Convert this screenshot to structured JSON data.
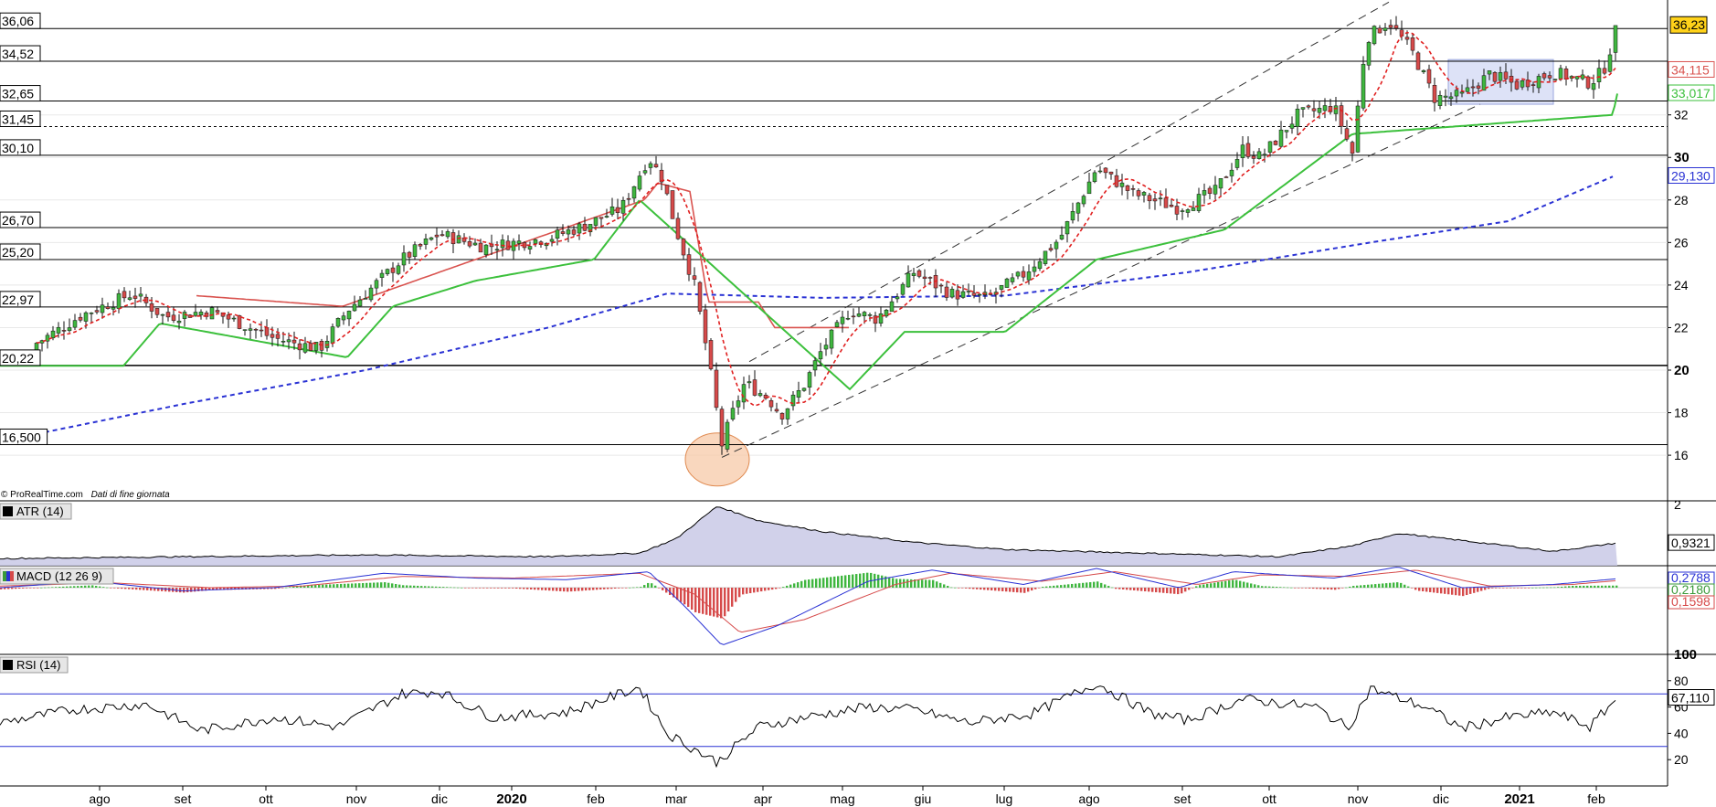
{
  "watermark": {
    "source": "© ProRealTime.com",
    "note": "Dati di fine giornata"
  },
  "colors": {
    "up": "#3fb63f",
    "down": "#d64a4a",
    "ma_short": "#e02020",
    "ma_long": "#2a32d4",
    "stop_upper": "#d9534f",
    "stop_lower": "#3cc03c",
    "price_badge": "#ffd21a",
    "atr_fill": "#c9c9e6",
    "rsi_band": "#2a32d4"
  },
  "chart_data": [
    {
      "type": "candlestick",
      "panel": "price",
      "x_labels": [
        "ago",
        "set",
        "ott",
        "nov",
        "dic",
        "2020",
        "feb",
        "mar",
        "apr",
        "mag",
        "giu",
        "lug",
        "ago",
        "set",
        "ott",
        "nov",
        "dic",
        "2021",
        "feb"
      ],
      "bold_x_labels": [
        "2020",
        "2021"
      ],
      "y_ticks": [
        16,
        18,
        20,
        22,
        24,
        26,
        28,
        30,
        32
      ],
      "bold_y_ticks": [
        20,
        30
      ],
      "ylim": [
        14.2,
        37.4
      ],
      "price_last": "36,23",
      "overlay_values": [
        {
          "value": "34,115",
          "color": "#d9534f"
        },
        {
          "value": "33,017",
          "color": "#3cc03c"
        },
        {
          "value": "29,130",
          "color": "#2a32d4"
        }
      ],
      "horizontal_levels": [
        {
          "value": 36.06,
          "label": "36,06"
        },
        {
          "value": 34.52,
          "label": "34,52"
        },
        {
          "value": 32.65,
          "label": "32,65"
        },
        {
          "value": 31.45,
          "label": "31,45"
        },
        {
          "value": 30.1,
          "label": "30,10"
        },
        {
          "value": 26.7,
          "label": "26,70"
        },
        {
          "value": 25.2,
          "label": "25,20"
        },
        {
          "value": 22.97,
          "label": "22,97"
        },
        {
          "value": 20.22,
          "label": "20,22"
        },
        {
          "value": 16.5,
          "label": "16,500"
        }
      ],
      "dotted_level": 31.45,
      "anchors": [
        {
          "t": 0,
          "v": 20.3
        },
        {
          "t": 45,
          "v": 21.4
        },
        {
          "t": 90,
          "v": 22.6
        },
        {
          "t": 145,
          "v": 23.6
        },
        {
          "t": 180,
          "v": 22.5
        },
        {
          "t": 230,
          "v": 22.8
        },
        {
          "t": 300,
          "v": 21.5
        },
        {
          "t": 350,
          "v": 21.0
        },
        {
          "t": 380,
          "v": 22.8
        },
        {
          "t": 440,
          "v": 25.2
        },
        {
          "t": 480,
          "v": 26.4
        },
        {
          "t": 530,
          "v": 25.8
        },
        {
          "t": 600,
          "v": 26.2
        },
        {
          "t": 640,
          "v": 26.8
        },
        {
          "t": 680,
          "v": 27.6
        },
        {
          "t": 710,
          "v": 30.0
        },
        {
          "t": 725,
          "v": 29.0
        },
        {
          "t": 740,
          "v": 26.6
        },
        {
          "t": 760,
          "v": 24.0
        },
        {
          "t": 775,
          "v": 20.6
        },
        {
          "t": 790,
          "v": 16.5
        },
        {
          "t": 800,
          "v": 17.8
        },
        {
          "t": 815,
          "v": 19.4
        },
        {
          "t": 840,
          "v": 18.7
        },
        {
          "t": 855,
          "v": 17.9
        },
        {
          "t": 880,
          "v": 19.3
        },
        {
          "t": 900,
          "v": 21.0
        },
        {
          "t": 930,
          "v": 22.8
        },
        {
          "t": 960,
          "v": 22.4
        },
        {
          "t": 1000,
          "v": 24.6
        },
        {
          "t": 1040,
          "v": 23.6
        },
        {
          "t": 1080,
          "v": 23.4
        },
        {
          "t": 1120,
          "v": 24.5
        },
        {
          "t": 1160,
          "v": 26.2
        },
        {
          "t": 1200,
          "v": 29.5
        },
        {
          "t": 1240,
          "v": 28.3
        },
        {
          "t": 1290,
          "v": 27.6
        },
        {
          "t": 1330,
          "v": 28.4
        },
        {
          "t": 1360,
          "v": 30.4
        },
        {
          "t": 1380,
          "v": 30.0
        },
        {
          "t": 1420,
          "v": 32.0
        },
        {
          "t": 1460,
          "v": 32.4
        },
        {
          "t": 1480,
          "v": 30.2
        },
        {
          "t": 1495,
          "v": 35.6
        },
        {
          "t": 1520,
          "v": 36.4
        },
        {
          "t": 1545,
          "v": 35.0
        },
        {
          "t": 1570,
          "v": 32.8
        },
        {
          "t": 1600,
          "v": 32.9
        },
        {
          "t": 1630,
          "v": 33.9
        },
        {
          "t": 1660,
          "v": 33.4
        },
        {
          "t": 1700,
          "v": 34.0
        },
        {
          "t": 1740,
          "v": 33.5
        },
        {
          "t": 1755,
          "v": 34.1
        },
        {
          "t": 1770,
          "v": 36.2
        }
      ],
      "ma_long": [
        {
          "t": 40,
          "v": 17.0
        },
        {
          "t": 200,
          "v": 18.4
        },
        {
          "t": 400,
          "v": 20.0
        },
        {
          "t": 600,
          "v": 22.0
        },
        {
          "t": 730,
          "v": 23.6
        },
        {
          "t": 900,
          "v": 23.4
        },
        {
          "t": 1100,
          "v": 23.5
        },
        {
          "t": 1300,
          "v": 24.6
        },
        {
          "t": 1500,
          "v": 26.0
        },
        {
          "t": 1650,
          "v": 27.0
        },
        {
          "t": 1765,
          "v": 29.1
        }
      ],
      "stop_upper": [
        {
          "t": 215,
          "v": 23.5
        },
        {
          "t": 375,
          "v": 23.0
        },
        {
          "t": 705,
          "v": 28.0
        },
        {
          "t": 720,
          "v": 28.8
        },
        {
          "t": 755,
          "v": 28.4
        },
        {
          "t": 775,
          "v": 23.2
        },
        {
          "t": 830,
          "v": 23.2
        },
        {
          "t": 848,
          "v": 22.0
        },
        {
          "t": 930,
          "v": 22.0
        }
      ],
      "stop_lower": [
        {
          "t": 0,
          "v": 20.2
        },
        {
          "t": 135,
          "v": 20.2
        },
        {
          "t": 175,
          "v": 22.2
        },
        {
          "t": 380,
          "v": 20.6
        },
        {
          "t": 430,
          "v": 23.0
        },
        {
          "t": 520,
          "v": 24.2
        },
        {
          "t": 650,
          "v": 25.2
        },
        {
          "t": 700,
          "v": 28.0
        },
        {
          "t": 930,
          "v": 19.1
        },
        {
          "t": 990,
          "v": 21.8
        },
        {
          "t": 1100,
          "v": 21.8
        },
        {
          "t": 1200,
          "v": 25.2
        },
        {
          "t": 1340,
          "v": 26.6
        },
        {
          "t": 1480,
          "v": 31.1
        },
        {
          "t": 1765,
          "v": 32.0
        },
        {
          "t": 1770,
          "v": 33.0
        }
      ],
      "channel_lines": [
        [
          {
            "t": 790,
            "v": 15.9
          },
          {
            "t": 1620,
            "v": 32.5
          }
        ],
        [
          {
            "t": 820,
            "v": 20.4
          },
          {
            "t": 1520,
            "v": 37.3
          }
        ]
      ],
      "range_box": {
        "t0": 1585,
        "t1": 1700,
        "v0": 32.5,
        "v1": 34.6
      },
      "highlight_circle": {
        "t": 785,
        "v": 15.8
      }
    },
    {
      "type": "area",
      "panel": "atr",
      "title": "ATR (14)",
      "y_ticks": [
        2
      ],
      "last_value": "0,9321",
      "ylim": [
        0.3,
        2.1
      ],
      "anchors": [
        {
          "t": 0,
          "v": 0.5
        },
        {
          "t": 200,
          "v": 0.55
        },
        {
          "t": 400,
          "v": 0.6
        },
        {
          "t": 600,
          "v": 0.55
        },
        {
          "t": 700,
          "v": 0.65
        },
        {
          "t": 740,
          "v": 1.05
        },
        {
          "t": 785,
          "v": 1.95
        },
        {
          "t": 830,
          "v": 1.55
        },
        {
          "t": 900,
          "v": 1.25
        },
        {
          "t": 1000,
          "v": 0.95
        },
        {
          "t": 1100,
          "v": 0.75
        },
        {
          "t": 1250,
          "v": 0.65
        },
        {
          "t": 1400,
          "v": 0.55
        },
        {
          "t": 1480,
          "v": 0.85
        },
        {
          "t": 1530,
          "v": 1.2
        },
        {
          "t": 1600,
          "v": 1.0
        },
        {
          "t": 1700,
          "v": 0.7
        },
        {
          "t": 1770,
          "v": 0.93
        }
      ]
    },
    {
      "type": "histogram-line",
      "panel": "macd",
      "title": "MACD (12 26 9)",
      "last_values": [
        "0,2788",
        "0,2180",
        "0,1598"
      ],
      "ylim": [
        -2.0,
        0.6
      ],
      "macd": [
        {
          "t": 0,
          "v": 0.0
        },
        {
          "t": 100,
          "v": 0.2
        },
        {
          "t": 200,
          "v": -0.1
        },
        {
          "t": 300,
          "v": 0.0
        },
        {
          "t": 420,
          "v": 0.45
        },
        {
          "t": 520,
          "v": 0.3
        },
        {
          "t": 620,
          "v": 0.25
        },
        {
          "t": 710,
          "v": 0.5
        },
        {
          "t": 750,
          "v": -0.6
        },
        {
          "t": 790,
          "v": -1.8
        },
        {
          "t": 850,
          "v": -1.2
        },
        {
          "t": 950,
          "v": 0.2
        },
        {
          "t": 1020,
          "v": 0.55
        },
        {
          "t": 1120,
          "v": 0.1
        },
        {
          "t": 1200,
          "v": 0.6
        },
        {
          "t": 1290,
          "v": 0.0
        },
        {
          "t": 1350,
          "v": 0.5
        },
        {
          "t": 1460,
          "v": 0.3
        },
        {
          "t": 1530,
          "v": 0.65
        },
        {
          "t": 1600,
          "v": 0.0
        },
        {
          "t": 1700,
          "v": 0.1
        },
        {
          "t": 1770,
          "v": 0.28
        }
      ],
      "signal": [
        {
          "t": 0,
          "v": 0.05
        },
        {
          "t": 120,
          "v": 0.15
        },
        {
          "t": 230,
          "v": 0.0
        },
        {
          "t": 330,
          "v": 0.05
        },
        {
          "t": 440,
          "v": 0.35
        },
        {
          "t": 560,
          "v": 0.3
        },
        {
          "t": 700,
          "v": 0.45
        },
        {
          "t": 760,
          "v": -0.2
        },
        {
          "t": 810,
          "v": -1.4
        },
        {
          "t": 880,
          "v": -1.0
        },
        {
          "t": 980,
          "v": 0.1
        },
        {
          "t": 1040,
          "v": 0.45
        },
        {
          "t": 1140,
          "v": 0.2
        },
        {
          "t": 1220,
          "v": 0.5
        },
        {
          "t": 1310,
          "v": 0.1
        },
        {
          "t": 1380,
          "v": 0.4
        },
        {
          "t": 1480,
          "v": 0.35
        },
        {
          "t": 1550,
          "v": 0.55
        },
        {
          "t": 1630,
          "v": 0.05
        },
        {
          "t": 1720,
          "v": 0.1
        },
        {
          "t": 1770,
          "v": 0.22
        }
      ]
    },
    {
      "type": "line",
      "panel": "rsi",
      "title": "RSI (14)",
      "y_ticks": [
        20,
        40,
        60,
        80,
        100
      ],
      "bold_y_ticks": [
        100
      ],
      "bands": [
        70,
        30
      ],
      "last_value": "67,110",
      "ylim": [
        0,
        100
      ],
      "anchors": [
        {
          "t": 0,
          "v": 48
        },
        {
          "t": 80,
          "v": 58
        },
        {
          "t": 160,
          "v": 62
        },
        {
          "t": 220,
          "v": 42
        },
        {
          "t": 300,
          "v": 52
        },
        {
          "t": 370,
          "v": 45
        },
        {
          "t": 440,
          "v": 70
        },
        {
          "t": 480,
          "v": 72
        },
        {
          "t": 540,
          "v": 52
        },
        {
          "t": 620,
          "v": 56
        },
        {
          "t": 700,
          "v": 75
        },
        {
          "t": 730,
          "v": 40
        },
        {
          "t": 760,
          "v": 28
        },
        {
          "t": 785,
          "v": 18
        },
        {
          "t": 830,
          "v": 45
        },
        {
          "t": 880,
          "v": 52
        },
        {
          "t": 950,
          "v": 60
        },
        {
          "t": 1000,
          "v": 58
        },
        {
          "t": 1060,
          "v": 48
        },
        {
          "t": 1130,
          "v": 55
        },
        {
          "t": 1200,
          "v": 78
        },
        {
          "t": 1260,
          "v": 55
        },
        {
          "t": 1300,
          "v": 50
        },
        {
          "t": 1360,
          "v": 66
        },
        {
          "t": 1440,
          "v": 60
        },
        {
          "t": 1475,
          "v": 44
        },
        {
          "t": 1500,
          "v": 74
        },
        {
          "t": 1560,
          "v": 60
        },
        {
          "t": 1600,
          "v": 44
        },
        {
          "t": 1650,
          "v": 52
        },
        {
          "t": 1700,
          "v": 56
        },
        {
          "t": 1740,
          "v": 45
        },
        {
          "t": 1770,
          "v": 67
        }
      ]
    }
  ]
}
